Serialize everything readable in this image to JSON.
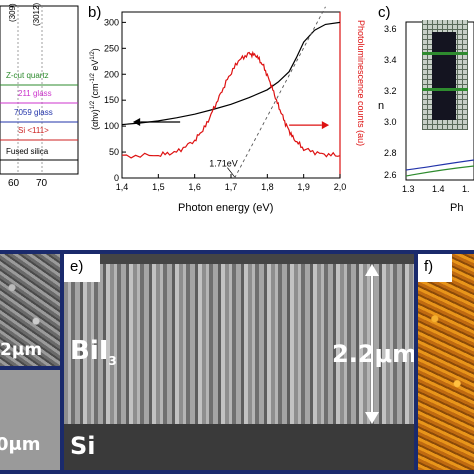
{
  "panel_a": {
    "label": "",
    "peaks": [
      "(309)",
      "(3012)"
    ],
    "samples": [
      {
        "name": "Z-cut quartz",
        "color": "#2e8b2e"
      },
      {
        "name": "211 glass",
        "color": "#cc33cc"
      },
      {
        "name": "7059 glass",
        "color": "#2233aa"
      },
      {
        "name": "Si <111>",
        "color": "#cc2222"
      },
      {
        "name": "Fused silica",
        "color": "#000000"
      }
    ],
    "x_ticks": [
      "60",
      "70"
    ]
  },
  "panel_b": {
    "label": "b)",
    "annotation": "1.71eV"
  },
  "panel_c": {
    "label": "c)",
    "ylabel": "n",
    "xlabel": "Ph",
    "y_ticks": [
      "3.6",
      "3.4",
      "3.2",
      "3.0",
      "2.8",
      "2.6"
    ],
    "x_ticks": [
      "1.3",
      "1.4",
      "1."
    ]
  },
  "panel_d": {
    "scale_top": "2μm",
    "scale_bottom": "0μm"
  },
  "panel_e": {
    "label": "e)",
    "film": "BiI",
    "film_sub": "3",
    "thickness": "2.2μm",
    "substrate": "Si"
  },
  "panel_f": {
    "label": "f)"
  },
  "chart_data": {
    "type": "line",
    "xlabel": "Photon energy (eV)",
    "ylabel_left": "(αhν)^(1/2) (cm^-1/2 eV^1/2)",
    "ylabel_right": "Photoluminescence counts (au)",
    "xlim": [
      1.4,
      2.0
    ],
    "ylim_left": [
      0,
      320
    ],
    "x_ticks": [
      "1,4",
      "1,5",
      "1,6",
      "1,7",
      "1,8",
      "1,9",
      "2,0"
    ],
    "y_ticks": [
      "0",
      "50",
      "100",
      "150",
      "200",
      "250",
      "300"
    ],
    "series": [
      {
        "color": "#000000",
        "x": [
          1.4,
          1.45,
          1.5,
          1.55,
          1.6,
          1.65,
          1.7,
          1.75,
          1.8,
          1.83,
          1.86,
          1.88,
          1.9,
          1.93,
          1.96,
          2.0
        ],
        "y": [
          103,
          106,
          110,
          116,
          123,
          132,
          142,
          155,
          170,
          185,
          205,
          232,
          262,
          285,
          296,
          300
        ]
      },
      {
        "color": "#dd1111",
        "x": [
          1.4,
          1.5,
          1.55,
          1.6,
          1.63,
          1.66,
          1.69,
          1.72,
          1.75,
          1.77,
          1.79,
          1.81,
          1.83,
          1.85,
          1.87,
          1.9,
          1.95,
          2.0
        ],
        "y": [
          42,
          44,
          50,
          72,
          100,
          145,
          190,
          226,
          240,
          236,
          215,
          180,
          140,
          105,
          78,
          56,
          46,
          43
        ]
      }
    ],
    "fit_line": {
      "x": [
        1.71,
        1.96
      ],
      "y": [
        0,
        330
      ]
    },
    "arrows": [
      {
        "direction": "left",
        "color": "#000000"
      },
      {
        "direction": "right",
        "color": "#dd1111"
      }
    ]
  }
}
